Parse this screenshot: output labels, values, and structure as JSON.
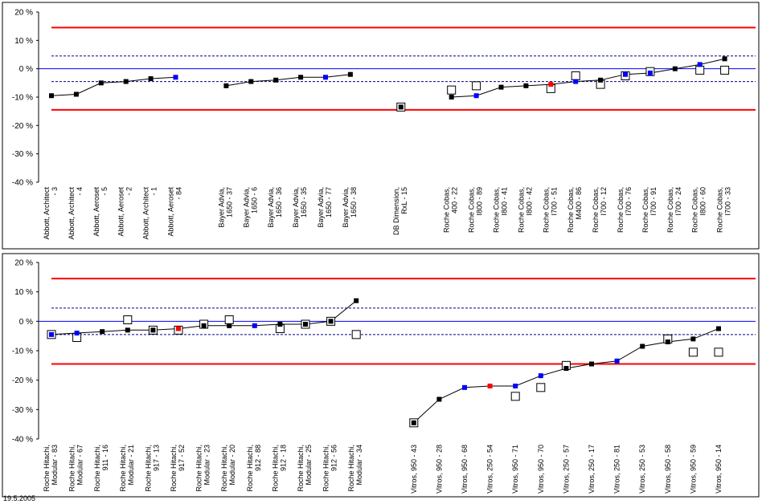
{
  "footer": {
    "date": "19.5.2005"
  },
  "colors": {
    "limit": "#ff0000",
    "inner_limit": "#00008b",
    "zero": "#0000ff",
    "line": "#000000",
    "point_black": "#000000",
    "point_blue": "#0000ff",
    "point_red": "#ff0000",
    "frame": "#000000"
  },
  "chart_data": [
    {
      "type": "scatter",
      "yticks": [
        "20 %",
        "10 %",
        "0 %",
        "-10 %",
        "-20 %",
        "-30 %",
        "-40 %"
      ],
      "ylim": [
        -40,
        20
      ],
      "limits": {
        "upper": 14.5,
        "lower": -14.5,
        "inner_upper": 4.5,
        "inner_lower": -4.5
      },
      "groups": [
        {
          "start": 0,
          "count": 6
        },
        {
          "start": 6,
          "count": 6
        },
        {
          "start": 12,
          "count": 1
        },
        {
          "start": 13,
          "count": 12
        }
      ],
      "categories": [
        [
          "Abbott, Architect",
          "- 3"
        ],
        [
          "Abbott, Architect",
          "- 4"
        ],
        [
          "Abbott, Aeroset",
          "- 5"
        ],
        [
          "Abbott, Aeroset",
          "- 2"
        ],
        [
          "Abbott, Architect",
          "- 1"
        ],
        [
          "Abbott, Aeroset",
          "- 84"
        ],
        [
          "Bayer Advia,",
          "1650 - 37"
        ],
        [
          "Bayer Advia,",
          "1650 - 6"
        ],
        [
          "Bayer Advia,",
          "1650 - 36"
        ],
        [
          "Bayer Advia,",
          "1650 - 35"
        ],
        [
          "Bayer Advia,",
          "1650 - 77"
        ],
        [
          "Bayer Advia,",
          "1650 - 38"
        ],
        [
          "DB Dimension,",
          "RxL - 15"
        ],
        [
          "Roche Cobas,",
          "400 - 22"
        ],
        [
          "Roche Cobas,",
          "I800 - 89"
        ],
        [
          "Roche Cobas,",
          "I800 - 41"
        ],
        [
          "Roche Cobas,",
          "I800 - 42"
        ],
        [
          "Roche Cobas,",
          "I700 - 51"
        ],
        [
          "Roche Cobas,",
          "M400 - 86"
        ],
        [
          "Roche Cobas,",
          "I700 - 12"
        ],
        [
          "Roche Cobas,",
          "I700 - 76"
        ],
        [
          "Roche Cobas,",
          "I700 - 91"
        ],
        [
          "Roche Cobas,",
          "I700 - 24"
        ],
        [
          "Roche Cobas,",
          "I800 - 60"
        ],
        [
          "Roche Cobas,",
          "I700 - 33"
        ]
      ],
      "values": [
        -9.5,
        -9,
        -5,
        -4.5,
        -3.5,
        -3,
        -6,
        -4.5,
        -4,
        -3,
        -3,
        -2,
        -13.5,
        -10,
        -9.5,
        -6.5,
        -6,
        -5.5,
        -4.5,
        -4,
        -2,
        -1.5,
        0,
        1.5,
        3.5
      ],
      "marker_colors": [
        "black",
        "black",
        "black",
        "black",
        "black",
        "blue",
        "black",
        "black",
        "black",
        "black",
        "blue",
        "black",
        "black",
        "black",
        "blue",
        "black",
        "black",
        "red",
        "blue",
        "black",
        "blue",
        "blue",
        "black",
        "blue",
        "black"
      ],
      "open_values": [
        null,
        null,
        null,
        null,
        null,
        null,
        null,
        null,
        null,
        null,
        null,
        null,
        -13.5,
        -7.5,
        -6,
        null,
        null,
        -7,
        -2.5,
        -5.5,
        -2.5,
        -1,
        null,
        -0.5,
        -0.5
      ]
    },
    {
      "type": "scatter",
      "yticks": [
        "20 %",
        "10 %",
        "0 %",
        "-10 %",
        "-20 %",
        "-30 %",
        "-40 %"
      ],
      "ylim": [
        -40,
        20
      ],
      "limits": {
        "upper": 14.5,
        "lower": -14.5,
        "inner_upper": 4.5,
        "inner_lower": -4.5
      },
      "groups": [
        {
          "start": 0,
          "count": 13
        },
        {
          "start": 13,
          "count": 13
        }
      ],
      "categories": [
        [
          "Roche Hitachi,",
          "Modular - 83"
        ],
        [
          "Roche Hitachi,",
          "Modular - 67"
        ],
        [
          "Roche Hitachi,",
          "911 - 16"
        ],
        [
          "Roche Hitachi,",
          "Modular - 21"
        ],
        [
          "Roche Hitachi,",
          "917 - 13"
        ],
        [
          "Roche Hitachi,",
          "917 - 52"
        ],
        [
          "Roche Hitachi,",
          "Modular - 23"
        ],
        [
          "Roche Hitachi,",
          "Modular - 20"
        ],
        [
          "Roche Hitachi,",
          "912 - 88"
        ],
        [
          "Roche Hitachi,",
          "912 - 18"
        ],
        [
          "Roche Hitachi,",
          "Modular - 25"
        ],
        [
          "Roche Hitachi,",
          "912 - 56"
        ],
        [
          "Roche Hitachi,",
          "Modular - 34"
        ],
        [
          "Vitros, 950 - 43"
        ],
        [
          "Vitros, 950 - 28"
        ],
        [
          "Vitros, 950 - 68"
        ],
        [
          "Vitros, 250 - 54"
        ],
        [
          "Vitros, 950 - 71"
        ],
        [
          "Vitros, 950 - 70"
        ],
        [
          "Vitros, 250 - 57"
        ],
        [
          "Vitros, 250 - 17"
        ],
        [
          "Vitros, 250 - 81"
        ],
        [
          "Vitros, 250 - 53"
        ],
        [
          "Vitros, 950 - 58"
        ],
        [
          "Vitros, 950 - 59"
        ],
        [
          "Vitros, 950 - 14"
        ]
      ],
      "values": [
        -4.5,
        -4,
        -3.5,
        -3,
        -3,
        -2.5,
        -1.5,
        -1.5,
        -1.5,
        -1,
        -1,
        0,
        7,
        -34.5,
        -26.5,
        -22.5,
        -22,
        -22,
        -18.5,
        -16,
        -14.5,
        -13.5,
        -8.5,
        -7,
        -6,
        -2.5
      ],
      "marker_colors": [
        "blue",
        "blue",
        "black",
        "black",
        "black",
        "red",
        "black",
        "black",
        "blue",
        "black",
        "black",
        "black",
        "black",
        "black",
        "black",
        "blue",
        "red",
        "blue",
        "blue",
        "black",
        "black",
        "blue",
        "black",
        "black",
        "black",
        "black"
      ],
      "open_values": [
        -4.5,
        -5.5,
        null,
        0.5,
        -3,
        -3,
        -1,
        0.5,
        null,
        -2.5,
        -1,
        0,
        -4.5,
        -34.5,
        null,
        null,
        null,
        -25.5,
        -22.5,
        -15,
        null,
        null,
        null,
        -6,
        -10.5,
        -10.5
      ]
    }
  ]
}
